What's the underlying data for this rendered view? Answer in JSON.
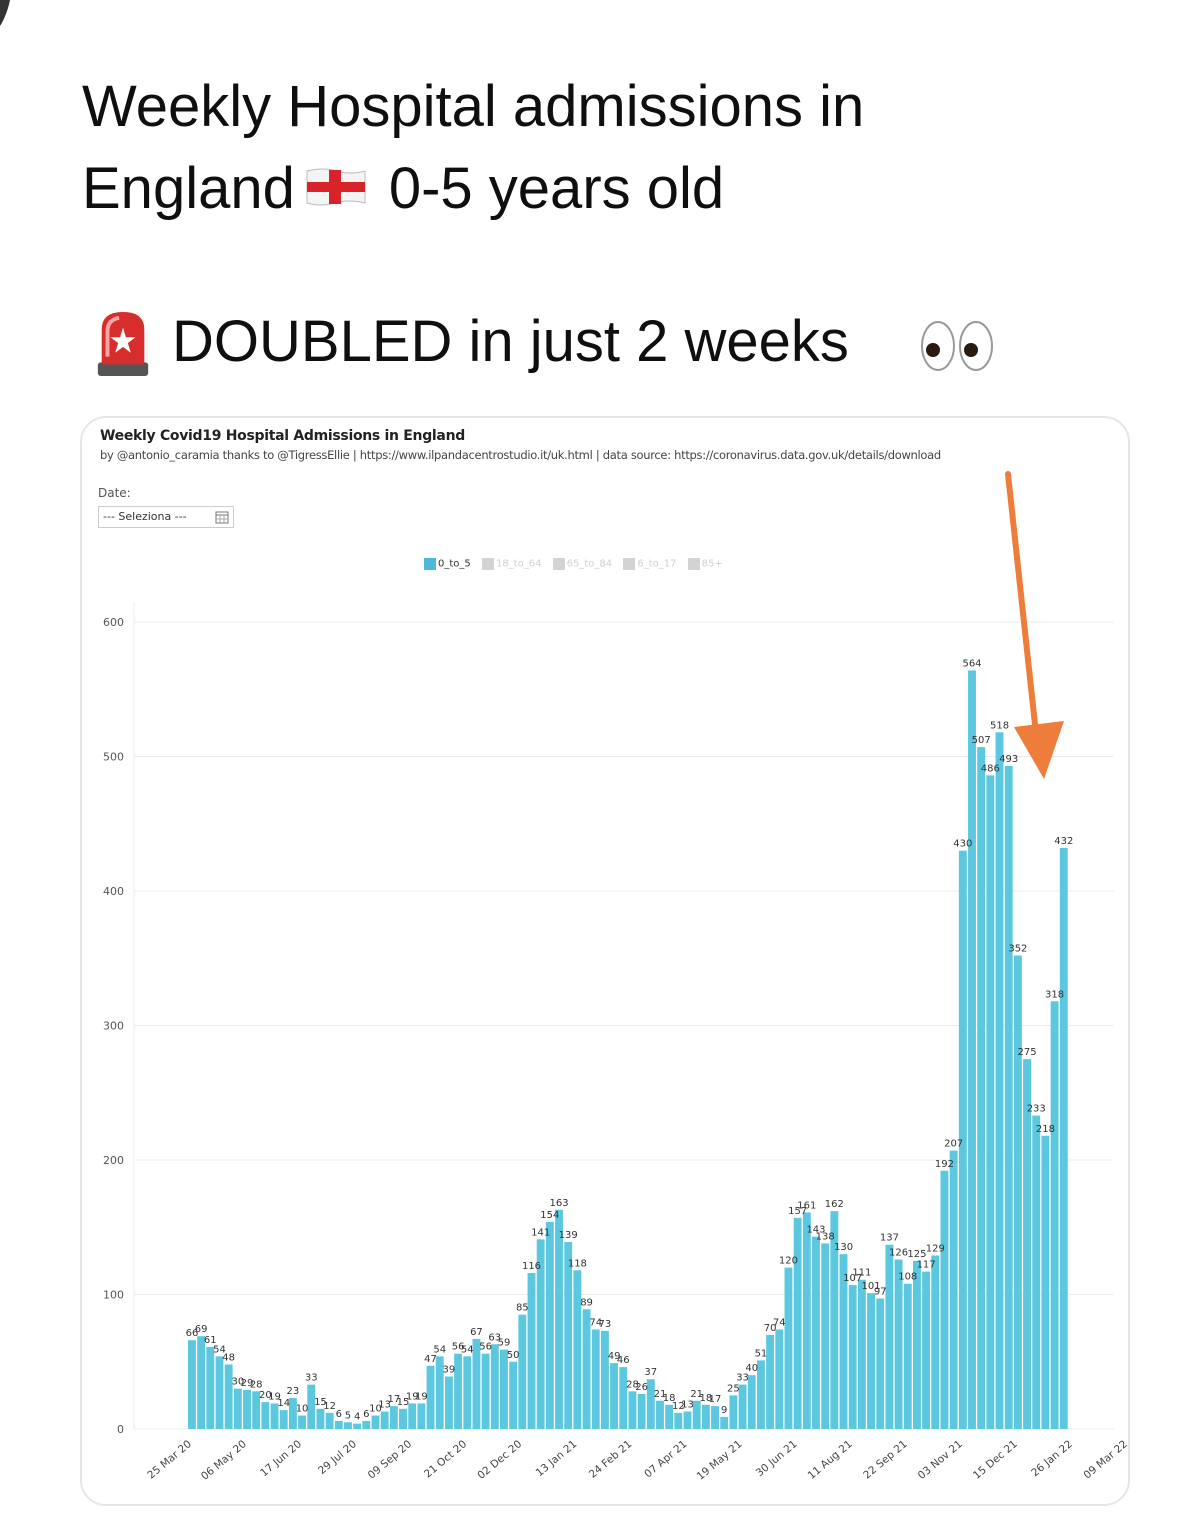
{
  "tweet": {
    "line1": "Weekly Hospital admissions in",
    "line2_a": "England",
    "line2_b": "0-5 years old",
    "line3": "DOUBLED in just 2 weeks"
  },
  "icons": [
    "england-flag-icon",
    "police-light-icon",
    "eyes-icon",
    "calendar-icon",
    "arrow-annotation"
  ],
  "colors": {
    "bar": "#5bc8e0",
    "arrow": "#ee7d3c",
    "legend_active": "#4fb8d8",
    "legend_inactive": "#cccccc"
  },
  "chart_header": {
    "title": "Weekly Covid19 Hospital Admissions in England",
    "subtitle": "by @antonio_caramia thanks to @TigressEllie | https://www.ilpandacentrostudio.it/uk.html | data source: https://coronavirus.data.gov.uk/details/download",
    "date_label": "Date:",
    "date_select": "--- Seleziona ---"
  },
  "legend": [
    {
      "label": "0_to_5",
      "active": true
    },
    {
      "label": "18_to_64",
      "active": false
    },
    {
      "label": "65_to_84",
      "active": false
    },
    {
      "label": "6_to_17",
      "active": false
    },
    {
      "label": "85+",
      "active": false
    }
  ],
  "chart_data": {
    "type": "bar",
    "title": "Weekly Covid19 Hospital Admissions in England",
    "series": [
      {
        "name": "0_to_5"
      }
    ],
    "ylim": [
      0,
      600
    ],
    "yticks": [
      "0",
      "100",
      "200",
      "300",
      "400",
      "500",
      "600"
    ],
    "xticks": [
      {
        "label": "25 Mar 20",
        "index": 0
      },
      {
        "label": "06 May 20",
        "index": 6
      },
      {
        "label": "17 Jun 20",
        "index": 12
      },
      {
        "label": "29 Jul 20",
        "index": 18
      },
      {
        "label": "09 Sep 20",
        "index": 24
      },
      {
        "label": "21 Oct 20",
        "index": 30
      },
      {
        "label": "02 Dec 20",
        "index": 36
      },
      {
        "label": "13 Jan 21",
        "index": 42
      },
      {
        "label": "24 Feb 21",
        "index": 48
      },
      {
        "label": "07 Apr 21",
        "index": 54
      },
      {
        "label": "19 May 21",
        "index": 60
      },
      {
        "label": "30 Jun 21",
        "index": 66
      },
      {
        "label": "11 Aug 21",
        "index": 72
      },
      {
        "label": "22 Sep 21",
        "index": 78
      },
      {
        "label": "03 Nov 21",
        "index": 84
      },
      {
        "label": "15 Dec 21",
        "index": 90
      },
      {
        "label": "26 Jan 22",
        "index": 96
      },
      {
        "label": "09 Mar 22",
        "index": 102
      }
    ],
    "values": [
      66,
      69,
      61,
      54,
      48,
      30,
      29,
      28,
      20,
      19,
      14,
      23,
      10,
      33,
      15,
      12,
      6,
      5,
      4,
      6,
      10,
      13,
      17,
      15,
      19,
      19,
      47,
      54,
      39,
      56,
      54,
      67,
      56,
      63,
      59,
      50,
      85,
      116,
      141,
      154,
      163,
      139,
      118,
      89,
      74,
      73,
      49,
      46,
      28,
      26,
      37,
      21,
      18,
      12,
      13,
      21,
      18,
      17,
      9,
      25,
      33,
      40,
      51,
      70,
      74,
      120,
      157,
      161,
      143,
      138,
      162,
      130,
      107,
      111,
      101,
      97,
      137,
      126,
      108,
      125,
      117,
      129,
      192,
      207,
      430,
      564,
      507,
      486,
      518,
      493,
      352,
      275,
      233,
      218,
      318,
      432
    ],
    "grid": true
  }
}
